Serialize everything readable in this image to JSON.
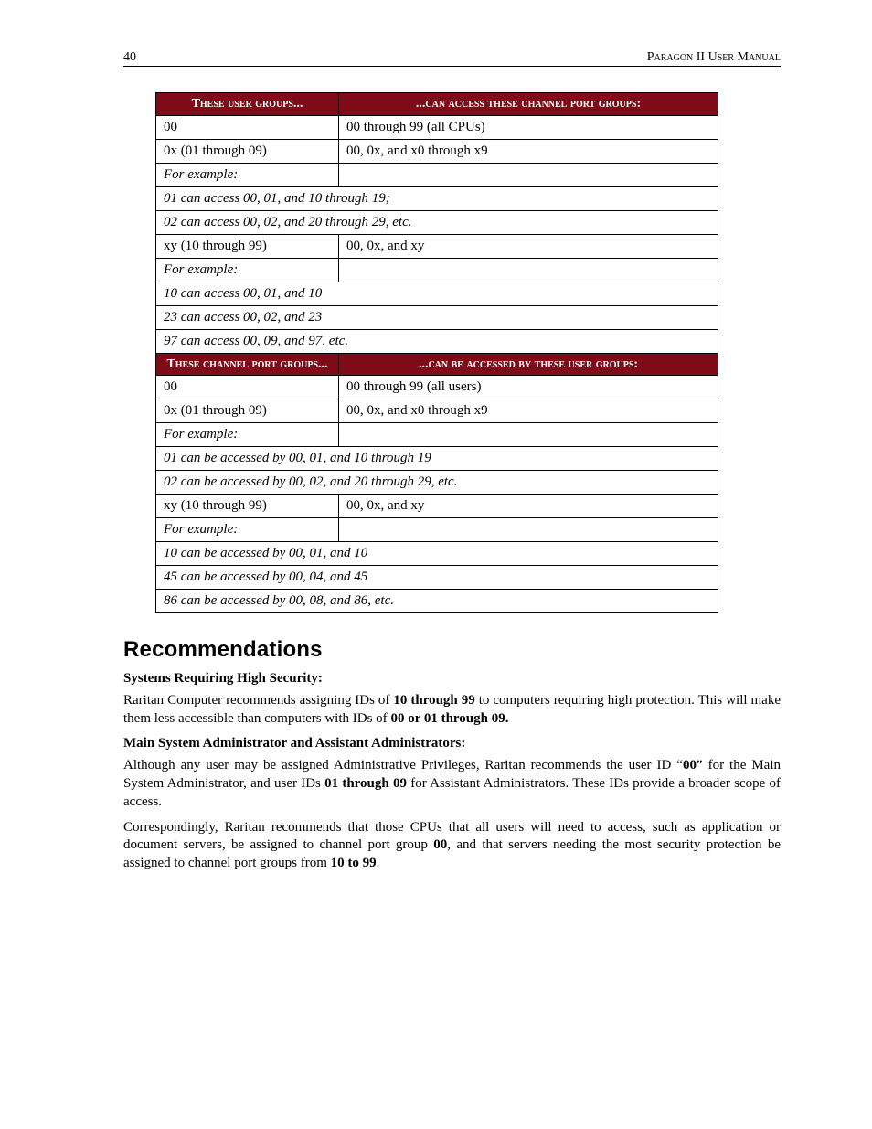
{
  "header": {
    "page_number": "40",
    "doc_title": "Paragon II User Manual"
  },
  "table1": {
    "header_left": "These user groups...",
    "header_right": "...can access these channel port groups:",
    "rows": [
      {
        "type": "two",
        "left": "00",
        "right": "00 through 99 (all CPUs)"
      },
      {
        "type": "two",
        "left": "0x (01 through 09)",
        "right": "00, 0x, and x0 through x9"
      },
      {
        "type": "two",
        "left": "For example:",
        "right": "",
        "italic_left": true
      },
      {
        "type": "span",
        "text": "01 can access 00, 01, and 10 through 19;",
        "italic": true
      },
      {
        "type": "span",
        "text": "02 can access 00, 02, and 20 through 29, etc.",
        "italic": true
      },
      {
        "type": "two",
        "left": "xy (10 through 99)",
        "right": "00, 0x, and xy"
      },
      {
        "type": "two",
        "left": "For example:",
        "right": "",
        "italic_left": true
      },
      {
        "type": "span",
        "text": "10 can access 00, 01, and 10",
        "italic": true
      },
      {
        "type": "span",
        "text": "23 can access 00, 02, and 23",
        "italic": true
      },
      {
        "type": "span",
        "text": "97 can access 00, 09, and 97, etc.",
        "italic": true
      }
    ]
  },
  "table2": {
    "header_left": "These channel port groups...",
    "header_right": "...can be accessed by these user groups:",
    "rows": [
      {
        "type": "two",
        "left": "00",
        "right": "00 through 99 (all users)"
      },
      {
        "type": "two",
        "left": "0x (01 through 09)",
        "right": "00, 0x, and x0 through x9"
      },
      {
        "type": "two",
        "left": "For example:",
        "right": "",
        "italic_left": true
      },
      {
        "type": "span",
        "text": "01 can be accessed by 00, 01, and 10 through 19",
        "italic": true
      },
      {
        "type": "span",
        "text": "02 can be accessed by 00, 02, and 20 through 29, etc.",
        "italic": true
      },
      {
        "type": "two",
        "left": "xy (10 through 99)",
        "right": "00, 0x, and xy"
      },
      {
        "type": "two",
        "left": "For example:",
        "right": "",
        "italic_left": true
      },
      {
        "type": "span",
        "text": "10 can be accessed by 00, 01, and 10",
        "italic": true
      },
      {
        "type": "span",
        "text": "45 can be accessed by 00, 04, and 45",
        "italic": true
      },
      {
        "type": "span",
        "text": "86 can be accessed by 00, 08, and 86, etc.",
        "italic": true
      }
    ]
  },
  "recommendations": {
    "heading": "Recommendations",
    "sub1": "Systems Requiring High Security:",
    "p1_pre": "Raritan Computer recommends assigning IDs of ",
    "p1_b1": "10 through 99",
    "p1_mid": " to computers requiring high protection. This will make them less accessible than computers with IDs of ",
    "p1_b2": "00 or 01 through 09.",
    "sub2": "Main System Administrator and Assistant Administrators:",
    "p2_pre": "Although any user may be assigned Administrative Privileges, Raritan recommends the user ID “",
    "p2_b1": "00",
    "p2_mid1": "” for the Main System Administrator, and user IDs ",
    "p2_b2": "01 through 09",
    "p2_post": " for Assistant Administrators. These IDs provide a broader scope of access.",
    "p3_pre": "Correspondingly, Raritan recommends that those CPUs that all users will need to access, such as application or document servers, be assigned to channel port group ",
    "p3_b1": "00",
    "p3_mid": ", and that servers needing the most security protection be assigned to channel port groups from ",
    "p3_b2": "10 to 99",
    "p3_post": "."
  }
}
